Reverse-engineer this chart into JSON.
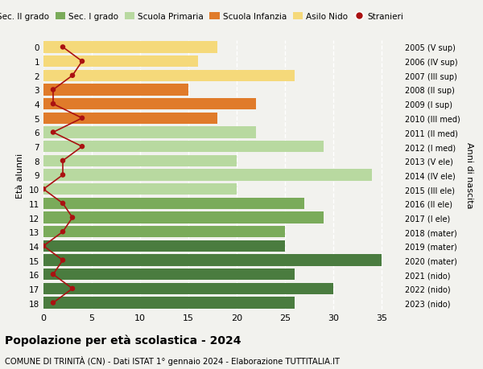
{
  "ages": [
    18,
    17,
    16,
    15,
    14,
    13,
    12,
    11,
    10,
    9,
    8,
    7,
    6,
    5,
    4,
    3,
    2,
    1,
    0
  ],
  "bar_values": [
    26,
    30,
    26,
    35,
    25,
    25,
    29,
    27,
    20,
    34,
    20,
    29,
    22,
    18,
    22,
    15,
    26,
    16,
    18
  ],
  "stranieri": [
    1,
    3,
    1,
    2,
    0,
    2,
    3,
    2,
    0,
    2,
    2,
    4,
    1,
    4,
    1,
    1,
    3,
    4,
    2
  ],
  "right_labels": [
    "2005 (V sup)",
    "2006 (IV sup)",
    "2007 (III sup)",
    "2008 (II sup)",
    "2009 (I sup)",
    "2010 (III med)",
    "2011 (II med)",
    "2012 (I med)",
    "2013 (V ele)",
    "2014 (IV ele)",
    "2015 (III ele)",
    "2016 (II ele)",
    "2017 (I ele)",
    "2018 (mater)",
    "2019 (mater)",
    "2020 (mater)",
    "2021 (nido)",
    "2022 (nido)",
    "2023 (nido)"
  ],
  "bar_colors": [
    "#4a7c3f",
    "#4a7c3f",
    "#4a7c3f",
    "#4a7c3f",
    "#4a7c3f",
    "#7aab5a",
    "#7aab5a",
    "#7aab5a",
    "#b8d9a0",
    "#b8d9a0",
    "#b8d9a0",
    "#b8d9a0",
    "#b8d9a0",
    "#e07b2a",
    "#e07b2a",
    "#e07b2a",
    "#f5d97a",
    "#f5d97a",
    "#f5d97a"
  ],
  "legend_labels": [
    "Sec. II grado",
    "Sec. I grado",
    "Scuola Primaria",
    "Scuola Infanzia",
    "Asilo Nido",
    "Stranieri"
  ],
  "legend_colors": [
    "#4a7c3f",
    "#7aab5a",
    "#b8d9a0",
    "#e07b2a",
    "#f5d97a",
    "#aa1111"
  ],
  "stranieri_color": "#aa1111",
  "title": "Popolazione per età scolastica - 2024",
  "subtitle": "COMUNE DI TRINITÀ (CN) - Dati ISTAT 1° gennaio 2024 - Elaborazione TUTTITALIA.IT",
  "right_axis_label": "Anni di nascita",
  "ylabel": "Età alunni",
  "xlim": [
    0,
    37
  ],
  "background_color": "#f2f2ee"
}
